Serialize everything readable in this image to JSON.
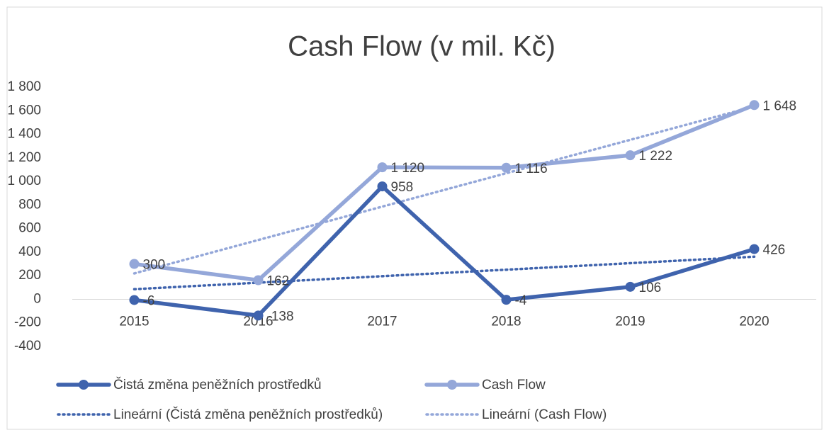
{
  "chart_data": {
    "type": "line",
    "title": "Cash Flow (v mil. Kč)",
    "categories": [
      "2015",
      "2016",
      "2017",
      "2018",
      "2019",
      "2020"
    ],
    "series": [
      {
        "name": "Čistá změna peněžních prostředků",
        "color": "#3f63ad",
        "values": [
          -6,
          -138,
          958,
          -4,
          106,
          426
        ]
      },
      {
        "name": "Cash Flow",
        "color": "#94a7d9",
        "values": [
          300,
          162,
          1120,
          1116,
          1222,
          1648
        ],
        "value_labels": [
          "300",
          "162",
          "1 120",
          "1 116",
          "1 222",
          "1 648"
        ]
      }
    ],
    "trendlines": [
      {
        "name": "Lineární (Čistá změna peněžních prostředků)",
        "series": 0,
        "color": "#3f63ad",
        "style": "dotted"
      },
      {
        "name": "Lineární (Cash Flow)",
        "series": 1,
        "color": "#94a7d9",
        "style": "dotted"
      }
    ],
    "ylim": [
      -400,
      1800
    ],
    "yticks": [
      -400,
      -200,
      0,
      200,
      400,
      600,
      800,
      {
        "value": 1000,
        "label": "1 000"
      },
      {
        "value": 1200,
        "label": "1 200"
      },
      {
        "value": 1400,
        "label": "1 400"
      },
      {
        "value": 1600,
        "label": "1 600"
      },
      {
        "value": 1800,
        "label": "1 800"
      }
    ],
    "grid": false,
    "legend": "bottom"
  }
}
